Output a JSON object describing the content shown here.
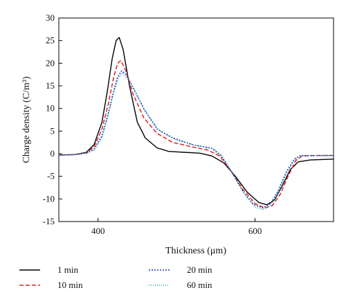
{
  "chart_data": {
    "type": "line",
    "title": "",
    "xlabel": "Thickness (μm)",
    "ylabel": "Charge density (C/m³)",
    "xlim": [
      350,
      700
    ],
    "ylim": [
      -15,
      30
    ],
    "x_ticks": [
      400,
      600
    ],
    "y_ticks": [
      -15,
      -10,
      -5,
      0,
      5,
      10,
      15,
      20,
      25,
      30
    ],
    "grid": false,
    "legend_position": "bottom",
    "series": [
      {
        "name": "1 min",
        "color": "#000000",
        "dash": "solid",
        "points": [
          [
            350,
            -0.3
          ],
          [
            370,
            -0.2
          ],
          [
            385,
            0.3
          ],
          [
            395,
            2
          ],
          [
            405,
            7
          ],
          [
            412,
            14
          ],
          [
            418,
            21
          ],
          [
            423,
            25
          ],
          [
            427,
            25.7
          ],
          [
            432,
            23
          ],
          [
            440,
            15
          ],
          [
            450,
            7
          ],
          [
            460,
            3.5
          ],
          [
            475,
            1.3
          ],
          [
            490,
            0.5
          ],
          [
            510,
            0.3
          ],
          [
            530,
            0.1
          ],
          [
            545,
            -0.5
          ],
          [
            560,
            -2
          ],
          [
            575,
            -5
          ],
          [
            590,
            -8.5
          ],
          [
            605,
            -10.8
          ],
          [
            615,
            -11.3
          ],
          [
            625,
            -10.2
          ],
          [
            635,
            -7
          ],
          [
            645,
            -3.5
          ],
          [
            655,
            -1.8
          ],
          [
            670,
            -1.4
          ],
          [
            700,
            -1.2
          ]
        ]
      },
      {
        "name": "10 min",
        "color": "#e02020",
        "dash": "6,3",
        "points": [
          [
            350,
            -0.3
          ],
          [
            370,
            -0.2
          ],
          [
            385,
            0.2
          ],
          [
            395,
            1.5
          ],
          [
            405,
            5.5
          ],
          [
            413,
            11
          ],
          [
            420,
            17
          ],
          [
            425,
            20
          ],
          [
            429,
            20.6
          ],
          [
            435,
            18.5
          ],
          [
            445,
            13
          ],
          [
            458,
            8
          ],
          [
            475,
            4.5
          ],
          [
            495,
            2.5
          ],
          [
            520,
            1.5
          ],
          [
            540,
            0.8
          ],
          [
            555,
            -0.5
          ],
          [
            570,
            -4
          ],
          [
            585,
            -8
          ],
          [
            600,
            -11
          ],
          [
            612,
            -12
          ],
          [
            622,
            -11.5
          ],
          [
            632,
            -9
          ],
          [
            642,
            -5
          ],
          [
            652,
            -1.5
          ],
          [
            660,
            -0.5
          ],
          [
            680,
            -0.4
          ],
          [
            700,
            -0.4
          ]
        ]
      },
      {
        "name": "20 min",
        "color": "#2030c0",
        "dash": "2,2",
        "points": [
          [
            350,
            -0.3
          ],
          [
            370,
            -0.2
          ],
          [
            385,
            0.1
          ],
          [
            395,
            1
          ],
          [
            405,
            4
          ],
          [
            413,
            9
          ],
          [
            420,
            14
          ],
          [
            425,
            17
          ],
          [
            430,
            18.3
          ],
          [
            436,
            17.5
          ],
          [
            445,
            14.5
          ],
          [
            458,
            10
          ],
          [
            475,
            5.5
          ],
          [
            495,
            3.5
          ],
          [
            520,
            2
          ],
          [
            545,
            1.2
          ],
          [
            557,
            -0.5
          ],
          [
            570,
            -4
          ],
          [
            585,
            -8.5
          ],
          [
            598,
            -11.2
          ],
          [
            610,
            -12
          ],
          [
            620,
            -11
          ],
          [
            630,
            -8
          ],
          [
            640,
            -4
          ],
          [
            650,
            -1.2
          ],
          [
            658,
            -0.4
          ],
          [
            680,
            -0.4
          ],
          [
            700,
            -0.4
          ]
        ]
      },
      {
        "name": "60 min",
        "color": "#1aa39a",
        "dash": "1,2",
        "points": [
          [
            350,
            -0.3
          ],
          [
            370,
            -0.2
          ],
          [
            385,
            0.1
          ],
          [
            395,
            0.8
          ],
          [
            405,
            3.5
          ],
          [
            413,
            8.5
          ],
          [
            420,
            13.5
          ],
          [
            426,
            16.8
          ],
          [
            431,
            17.8
          ],
          [
            438,
            16.5
          ],
          [
            448,
            13.5
          ],
          [
            460,
            9.5
          ],
          [
            478,
            5
          ],
          [
            500,
            3
          ],
          [
            525,
            1.8
          ],
          [
            548,
            1
          ],
          [
            558,
            -0.5
          ],
          [
            572,
            -4.5
          ],
          [
            587,
            -9
          ],
          [
            600,
            -11.8
          ],
          [
            610,
            -12.4
          ],
          [
            620,
            -11.5
          ],
          [
            630,
            -8.5
          ],
          [
            640,
            -4.5
          ],
          [
            650,
            -1.5
          ],
          [
            658,
            -0.5
          ],
          [
            680,
            -0.4
          ],
          [
            700,
            -0.4
          ]
        ]
      }
    ]
  }
}
